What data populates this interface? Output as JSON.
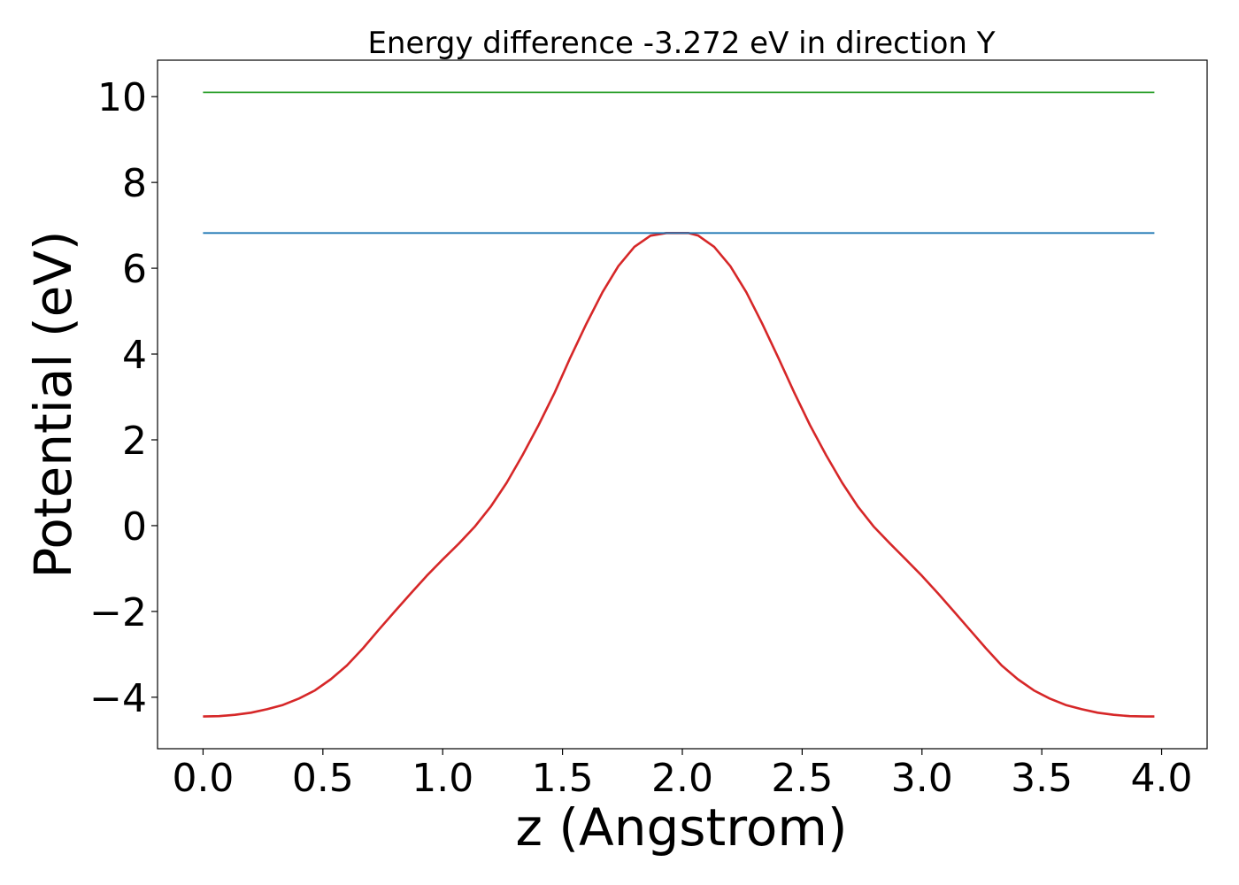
{
  "chart_data": {
    "type": "line",
    "title": "Energy difference -3.272 eV in direction Y",
    "xlabel": "z (Angstrom)",
    "ylabel": "Potential (eV)",
    "xlim": [
      -0.19,
      4.19
    ],
    "ylim": [
      -5.2,
      10.85
    ],
    "xticks": [
      0.0,
      0.5,
      1.0,
      1.5,
      2.0,
      2.5,
      3.0,
      3.5,
      4.0
    ],
    "xtick_labels": [
      "0.0",
      "0.5",
      "1.0",
      "1.5",
      "2.0",
      "2.5",
      "3.0",
      "3.5",
      "4.0"
    ],
    "yticks": [
      -4,
      -2,
      0,
      2,
      4,
      6,
      8,
      10
    ],
    "ytick_labels": [
      "−4",
      "−2",
      "0",
      "2",
      "4",
      "6",
      "8",
      "10"
    ],
    "grid": false,
    "legend": "none",
    "series": [
      {
        "color": "#d62728",
        "x": [
          0.0,
          0.067,
          0.133,
          0.2,
          0.267,
          0.333,
          0.4,
          0.467,
          0.533,
          0.6,
          0.667,
          0.733,
          0.8,
          0.867,
          0.933,
          1.0,
          1.067,
          1.133,
          1.2,
          1.267,
          1.333,
          1.4,
          1.467,
          1.533,
          1.6,
          1.667,
          1.733,
          1.8,
          1.867,
          1.933,
          2.0,
          2.025,
          2.067,
          2.133,
          2.2,
          2.267,
          2.333,
          2.4,
          2.467,
          2.533,
          2.6,
          2.667,
          2.733,
          2.8,
          2.867,
          2.933,
          3.0,
          3.067,
          3.133,
          3.2,
          3.267,
          3.333,
          3.4,
          3.467,
          3.533,
          3.6,
          3.667,
          3.733,
          3.8,
          3.867,
          3.933,
          3.97
        ],
        "y": [
          -4.45,
          -4.44,
          -4.41,
          -4.36,
          -4.28,
          -4.18,
          -4.03,
          -3.84,
          -3.58,
          -3.26,
          -2.86,
          -2.43,
          -2.0,
          -1.58,
          -1.17,
          -0.79,
          -0.42,
          -0.03,
          0.44,
          1.0,
          1.64,
          2.34,
          3.1,
          3.92,
          4.71,
          5.44,
          6.05,
          6.5,
          6.76,
          6.82,
          6.82,
          6.82,
          6.76,
          6.5,
          6.05,
          5.44,
          4.71,
          3.92,
          3.1,
          2.34,
          1.64,
          1.0,
          0.44,
          -0.03,
          -0.42,
          -0.79,
          -1.17,
          -1.58,
          -2.0,
          -2.43,
          -2.86,
          -3.26,
          -3.58,
          -3.84,
          -4.03,
          -4.18,
          -4.28,
          -4.36,
          -4.41,
          -4.44,
          -4.45,
          -4.45
        ]
      },
      {
        "color": "#1f77b4",
        "x": [
          0.0,
          3.97
        ],
        "y": [
          6.82,
          6.82
        ]
      },
      {
        "color": "#2ca02c",
        "x": [
          0.0,
          3.97
        ],
        "y": [
          10.1,
          10.1
        ]
      }
    ]
  }
}
